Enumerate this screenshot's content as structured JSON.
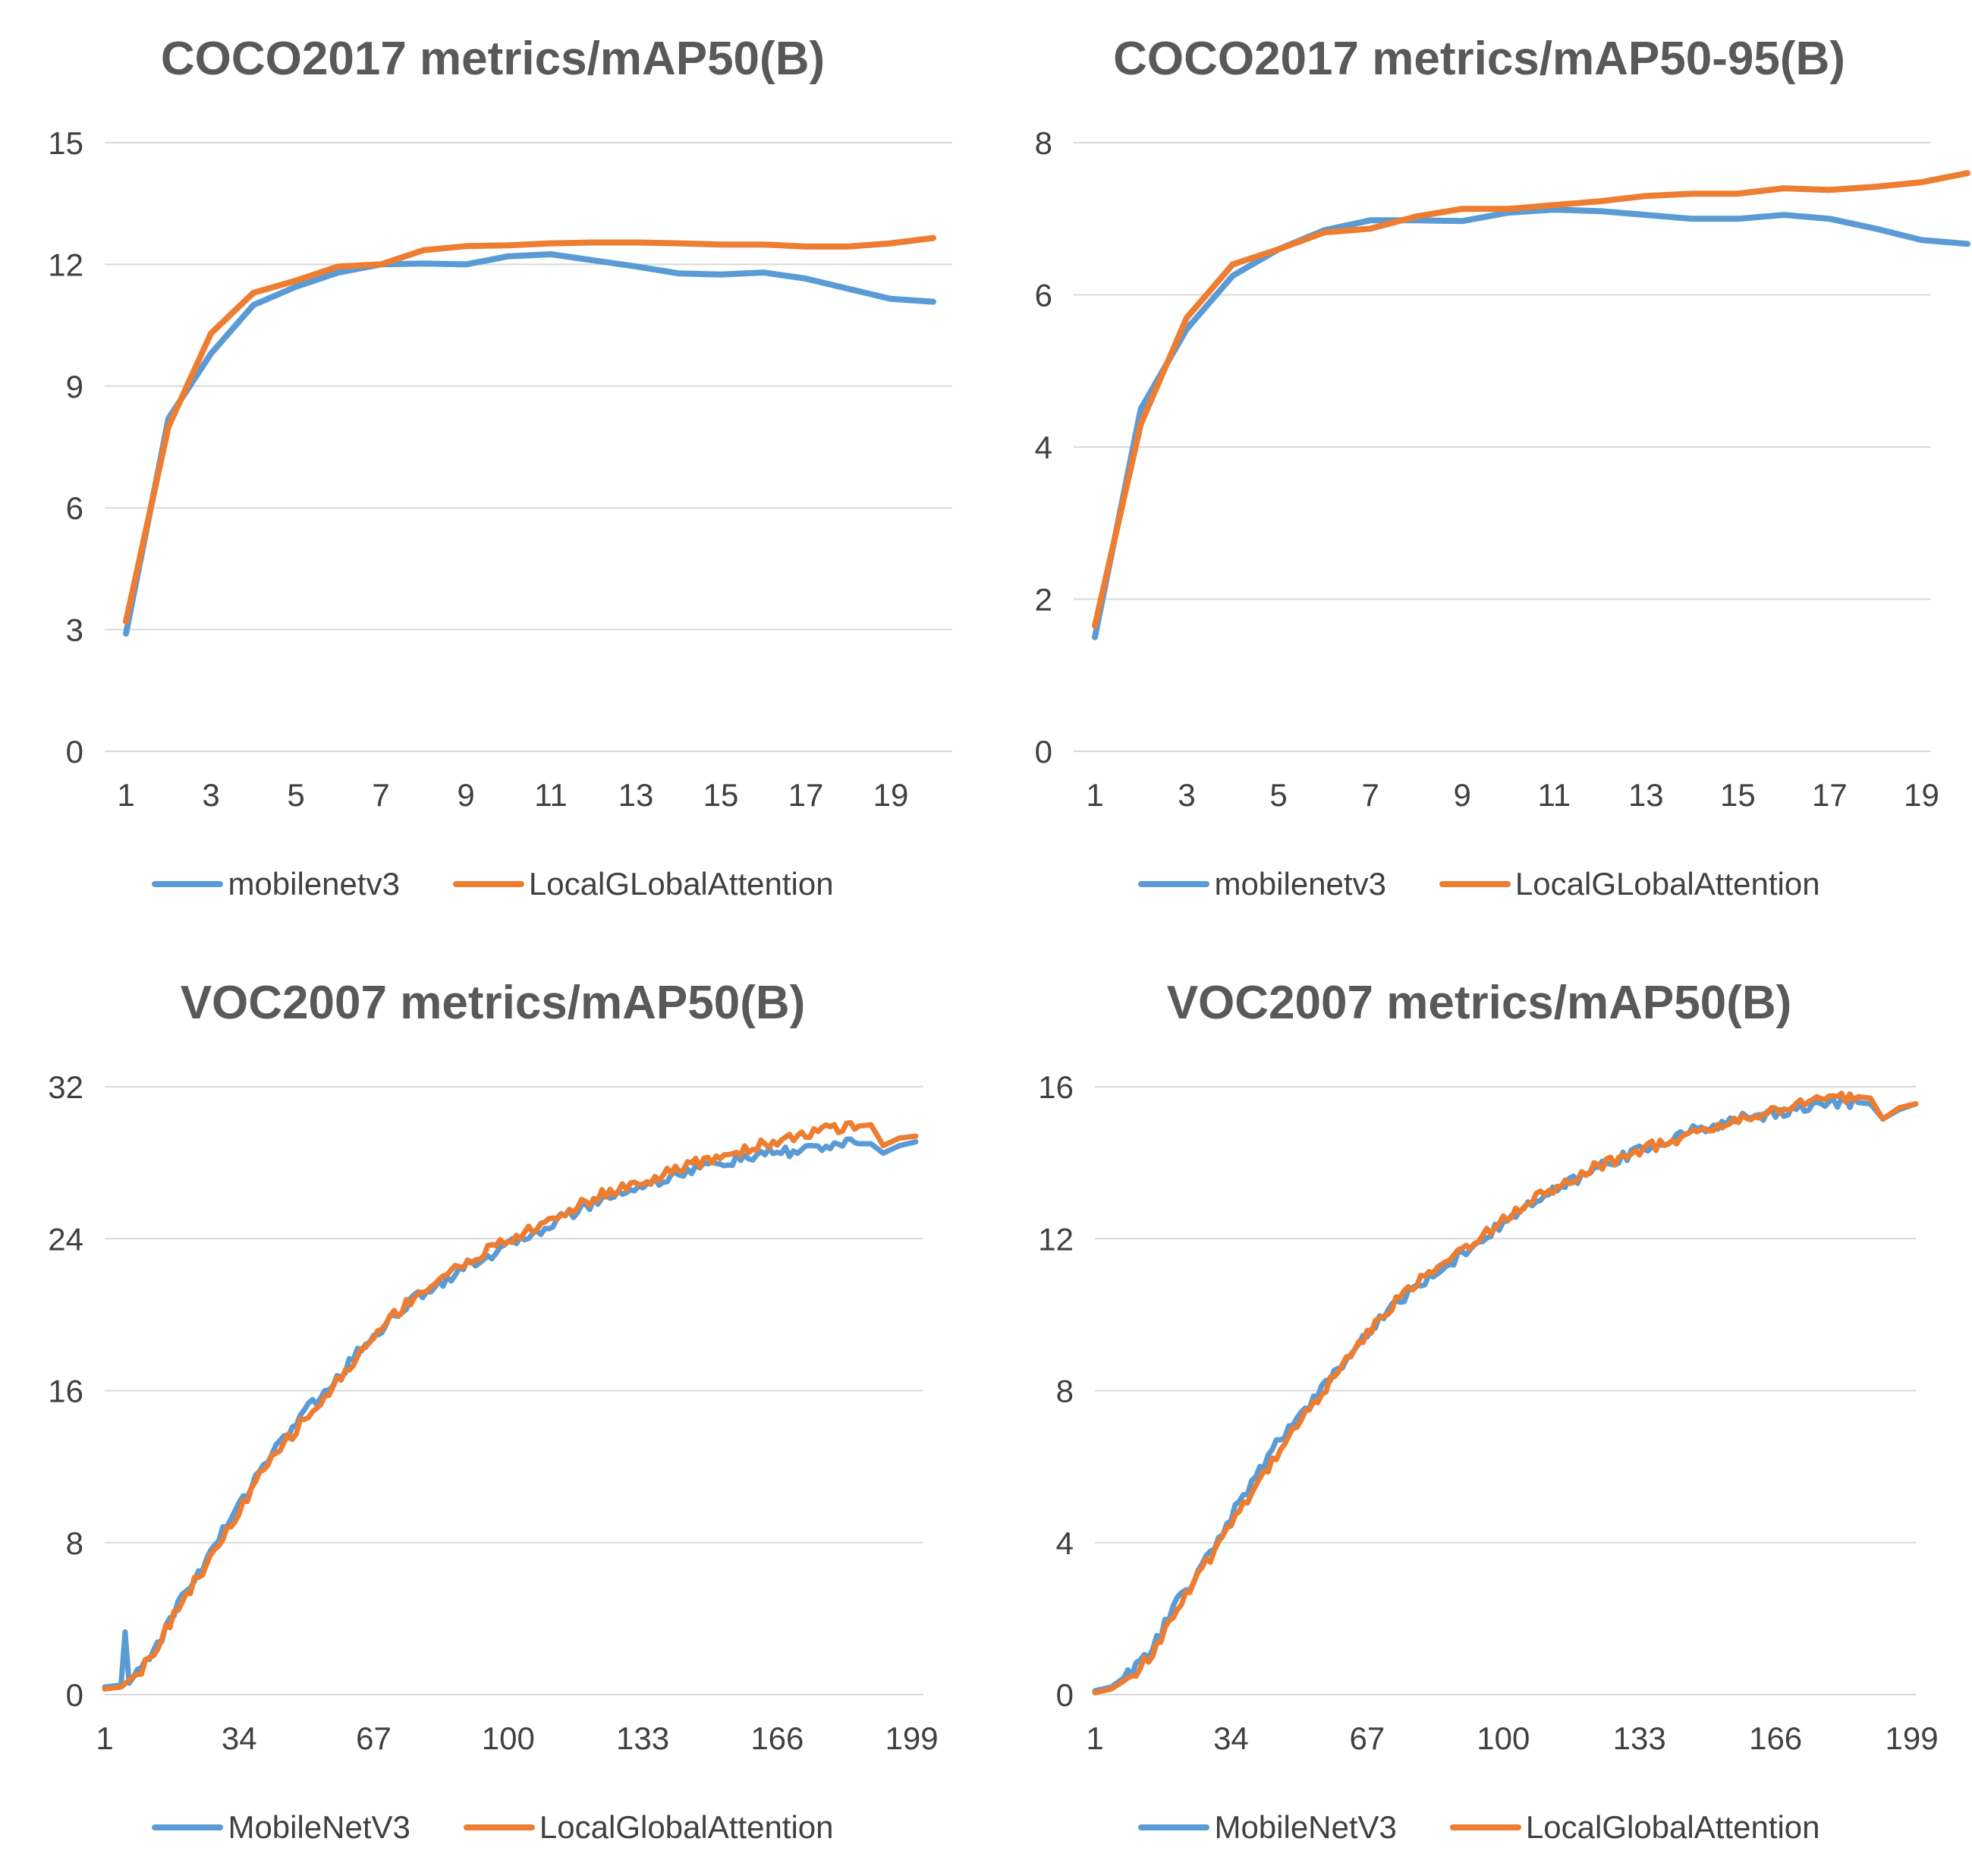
{
  "colors": {
    "series_blue": "#5b9bd5",
    "series_orange": "#ed7d31",
    "grid": "#d9d9d9",
    "text": "#404040",
    "title": "#595959"
  },
  "chart_data": [
    {
      "type": "line",
      "title": "COCO2017 metrics/mAP50(B)",
      "x": [
        1,
        2,
        3,
        4,
        5,
        6,
        7,
        8,
        9,
        10,
        11,
        12,
        13,
        14,
        15,
        16,
        17,
        18,
        19,
        20
      ],
      "x_tick_labels": [
        "1",
        "3",
        "5",
        "7",
        "9",
        "11",
        "13",
        "15",
        "17",
        "19"
      ],
      "ylim": [
        0,
        15
      ],
      "y_ticks": [
        0,
        3,
        6,
        9,
        12,
        15
      ],
      "legend_position": "bottom",
      "series": [
        {
          "name": "mobilenetv3",
          "color": "#5b9bd5",
          "values": [
            2.9,
            8.2,
            9.8,
            11.0,
            11.45,
            11.8,
            12.0,
            12.02,
            12.0,
            12.2,
            12.25,
            12.1,
            11.95,
            11.78,
            11.75,
            11.8,
            11.65,
            11.4,
            11.15,
            11.08
          ]
        },
        {
          "name": "LocalGLobalAttention",
          "color": "#ed7d31",
          "values": [
            3.2,
            8.0,
            10.3,
            11.3,
            11.6,
            11.95,
            12.0,
            12.35,
            12.45,
            12.47,
            12.52,
            12.54,
            12.54,
            12.52,
            12.49,
            12.49,
            12.44,
            12.44,
            12.52,
            12.65
          ]
        }
      ]
    },
    {
      "type": "line",
      "title": "COCO2017 metrics/mAP50-95(B)",
      "x": [
        1,
        2,
        3,
        4,
        5,
        6,
        7,
        8,
        9,
        10,
        11,
        12,
        13,
        14,
        15,
        16,
        17,
        18,
        19,
        20
      ],
      "x_tick_labels": [
        "1",
        "3",
        "5",
        "7",
        "9",
        "11",
        "13",
        "15",
        "17",
        "19"
      ],
      "ylim": [
        0,
        8
      ],
      "y_ticks": [
        0,
        2,
        4,
        6,
        8
      ],
      "legend_position": "bottom",
      "series": [
        {
          "name": "mobilenetv3",
          "color": "#5b9bd5",
          "values": [
            1.5,
            4.5,
            5.55,
            6.25,
            6.6,
            6.85,
            6.98,
            6.98,
            6.97,
            7.08,
            7.12,
            7.1,
            7.05,
            7.0,
            7.0,
            7.05,
            7.0,
            6.87,
            6.72,
            6.67
          ]
        },
        {
          "name": "LocalGLobalAttention",
          "color": "#ed7d31",
          "values": [
            1.65,
            4.3,
            5.7,
            6.4,
            6.6,
            6.82,
            6.87,
            7.03,
            7.13,
            7.13,
            7.18,
            7.23,
            7.3,
            7.33,
            7.33,
            7.4,
            7.38,
            7.42,
            7.48,
            7.6
          ]
        }
      ]
    },
    {
      "type": "line",
      "title": "VOC2007 metrics/mAP50(B)",
      "x_range": [
        1,
        200
      ],
      "x_tick_labels": [
        "1",
        "34",
        "67",
        "100",
        "133",
        "166",
        "199"
      ],
      "ylim": [
        0,
        32
      ],
      "y_ticks": [
        0,
        8,
        16,
        24,
        32
      ],
      "legend_position": "bottom",
      "series": [
        {
          "name": "MobileNetV3",
          "color": "#5b9bd5",
          "anchors": [
            [
              1,
              0.4
            ],
            [
              5,
              0.5
            ],
            [
              6,
              3.3
            ],
            [
              7,
              0.6
            ],
            [
              10,
              1.5
            ],
            [
              15,
              3.0
            ],
            [
              20,
              5.2
            ],
            [
              25,
              6.7
            ],
            [
              30,
              8.6
            ],
            [
              35,
              10.3
            ],
            [
              40,
              12.2
            ],
            [
              45,
              13.4
            ],
            [
              50,
              15.0
            ],
            [
              55,
              15.8
            ],
            [
              60,
              17.2
            ],
            [
              65,
              18.5
            ],
            [
              70,
              19.5
            ],
            [
              75,
              20.5
            ],
            [
              80,
              21.3
            ],
            [
              85,
              21.9
            ],
            [
              90,
              22.6
            ],
            [
              95,
              23.1
            ],
            [
              100,
              23.6
            ],
            [
              105,
              24.2
            ],
            [
              110,
              24.7
            ],
            [
              115,
              25.3
            ],
            [
              120,
              25.8
            ],
            [
              125,
              26.3
            ],
            [
              130,
              26.6
            ],
            [
              135,
              26.9
            ],
            [
              140,
              27.3
            ],
            [
              145,
              27.6
            ],
            [
              150,
              27.9
            ],
            [
              155,
              28.1
            ],
            [
              160,
              28.3
            ],
            [
              165,
              28.5
            ],
            [
              170,
              28.6
            ],
            [
              175,
              28.8
            ],
            [
              180,
              28.9
            ],
            [
              185,
              29.0
            ],
            [
              189,
              29.0
            ],
            [
              192,
              28.5
            ],
            [
              196,
              28.9
            ],
            [
              200,
              29.1
            ]
          ]
        },
        {
          "name": "LocalGlobalAttention",
          "color": "#ed7d31",
          "anchors": [
            [
              1,
              0.3
            ],
            [
              5,
              0.4
            ],
            [
              10,
              1.3
            ],
            [
              15,
              3.0
            ],
            [
              20,
              5.0
            ],
            [
              25,
              6.5
            ],
            [
              30,
              8.2
            ],
            [
              35,
              10.0
            ],
            [
              40,
              11.8
            ],
            [
              45,
              13.2
            ],
            [
              50,
              14.5
            ],
            [
              55,
              15.6
            ],
            [
              60,
              17.0
            ],
            [
              65,
              18.3
            ],
            [
              70,
              19.6
            ],
            [
              75,
              20.6
            ],
            [
              80,
              21.4
            ],
            [
              85,
              22.1
            ],
            [
              90,
              22.8
            ],
            [
              95,
              23.4
            ],
            [
              100,
              23.9
            ],
            [
              105,
              24.4
            ],
            [
              110,
              24.9
            ],
            [
              115,
              25.5
            ],
            [
              120,
              26.0
            ],
            [
              125,
              26.5
            ],
            [
              130,
              26.8
            ],
            [
              135,
              27.1
            ],
            [
              140,
              27.5
            ],
            [
              145,
              27.9
            ],
            [
              150,
              28.2
            ],
            [
              155,
              28.5
            ],
            [
              160,
              28.8
            ],
            [
              165,
              29.1
            ],
            [
              170,
              29.4
            ],
            [
              175,
              29.6
            ],
            [
              180,
              29.8
            ],
            [
              185,
              29.9
            ],
            [
              189,
              30.0
            ],
            [
              192,
              28.9
            ],
            [
              196,
              29.3
            ],
            [
              200,
              29.4
            ]
          ]
        }
      ]
    },
    {
      "type": "line",
      "title": "VOC2007 metrics/mAP50(B)",
      "x_range": [
        1,
        200
      ],
      "x_tick_labels": [
        "1",
        "34",
        "67",
        "100",
        "133",
        "166",
        "199"
      ],
      "ylim": [
        0,
        16
      ],
      "y_ticks": [
        0,
        4,
        8,
        12,
        16
      ],
      "legend_position": "bottom",
      "series": [
        {
          "name": "MobileNetV3",
          "color": "#5b9bd5",
          "anchors": [
            [
              1,
              0.1
            ],
            [
              5,
              0.2
            ],
            [
              10,
              0.6
            ],
            [
              15,
              1.2
            ],
            [
              20,
              2.3
            ],
            [
              25,
              3.0
            ],
            [
              30,
              3.9
            ],
            [
              35,
              4.9
            ],
            [
              40,
              5.7
            ],
            [
              45,
              6.6
            ],
            [
              50,
              7.3
            ],
            [
              55,
              7.9
            ],
            [
              60,
              8.6
            ],
            [
              65,
              9.2
            ],
            [
              70,
              9.9
            ],
            [
              75,
              10.4
            ],
            [
              80,
              10.8
            ],
            [
              85,
              11.2
            ],
            [
              90,
              11.6
            ],
            [
              95,
              12.0
            ],
            [
              100,
              12.4
            ],
            [
              105,
              12.8
            ],
            [
              110,
              13.1
            ],
            [
              115,
              13.4
            ],
            [
              120,
              13.7
            ],
            [
              125,
              14.0
            ],
            [
              130,
              14.2
            ],
            [
              135,
              14.4
            ],
            [
              140,
              14.6
            ],
            [
              145,
              14.8
            ],
            [
              150,
              14.95
            ],
            [
              155,
              15.1
            ],
            [
              160,
              15.2
            ],
            [
              165,
              15.3
            ],
            [
              170,
              15.4
            ],
            [
              175,
              15.5
            ],
            [
              180,
              15.55
            ],
            [
              185,
              15.6
            ],
            [
              189,
              15.55
            ],
            [
              192,
              15.15
            ],
            [
              196,
              15.4
            ],
            [
              200,
              15.55
            ]
          ]
        },
        {
          "name": "LocalGlobalAttention",
          "color": "#ed7d31",
          "anchors": [
            [
              1,
              0.05
            ],
            [
              5,
              0.15
            ],
            [
              10,
              0.5
            ],
            [
              15,
              1.1
            ],
            [
              20,
              2.1
            ],
            [
              25,
              2.9
            ],
            [
              30,
              3.8
            ],
            [
              35,
              4.7
            ],
            [
              40,
              5.5
            ],
            [
              45,
              6.3
            ],
            [
              50,
              7.1
            ],
            [
              55,
              7.8
            ],
            [
              60,
              8.5
            ],
            [
              65,
              9.2
            ],
            [
              70,
              9.9
            ],
            [
              75,
              10.5
            ],
            [
              80,
              10.9
            ],
            [
              85,
              11.3
            ],
            [
              90,
              11.7
            ],
            [
              95,
              12.1
            ],
            [
              100,
              12.5
            ],
            [
              105,
              12.9
            ],
            [
              110,
              13.2
            ],
            [
              115,
              13.5
            ],
            [
              120,
              13.8
            ],
            [
              125,
              14.0
            ],
            [
              130,
              14.2
            ],
            [
              135,
              14.4
            ],
            [
              140,
              14.55
            ],
            [
              145,
              14.7
            ],
            [
              150,
              14.9
            ],
            [
              155,
              15.05
            ],
            [
              160,
              15.2
            ],
            [
              165,
              15.35
            ],
            [
              170,
              15.5
            ],
            [
              175,
              15.65
            ],
            [
              180,
              15.7
            ],
            [
              185,
              15.75
            ],
            [
              189,
              15.7
            ],
            [
              192,
              15.15
            ],
            [
              196,
              15.45
            ],
            [
              200,
              15.55
            ]
          ]
        }
      ]
    }
  ]
}
